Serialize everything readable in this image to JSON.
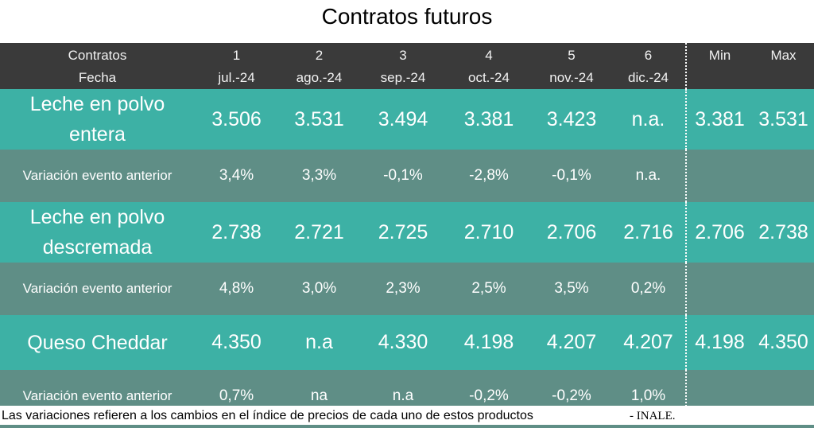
{
  "title": "Contratos futuros",
  "header": {
    "col1_top": "Contratos",
    "col1_bottom": "Fecha",
    "contracts": [
      {
        "number": "1",
        "date": "jul.-24"
      },
      {
        "number": "2",
        "date": "ago.-24"
      },
      {
        "number": "3",
        "date": "sep.-24"
      },
      {
        "number": "4",
        "date": "oct.-24"
      },
      {
        "number": "5",
        "date": "nov.-24"
      },
      {
        "number": "6",
        "date": "dic.-24"
      }
    ],
    "min_label": "Min",
    "max_label": "Max"
  },
  "rows": [
    {
      "product_line1": "Leche en polvo",
      "product_line2": "entera",
      "values": [
        "3.506",
        "3.531",
        "3.494",
        "3.381",
        "3.423",
        "n.a."
      ],
      "min": "3.381",
      "max": "3.531",
      "variation_label": "Variación evento anterior",
      "variations": [
        "3,4%",
        "3,3%",
        "-0,1%",
        "-2,8%",
        "-0,1%",
        "n.a."
      ]
    },
    {
      "product_line1": "Leche en polvo",
      "product_line2": "descremada",
      "values": [
        "2.738",
        "2.721",
        "2.725",
        "2.710",
        "2.706",
        "2.716"
      ],
      "min": "2.706",
      "max": "2.738",
      "variation_label": "Variación evento anterior",
      "variations": [
        "4,8%",
        "3,0%",
        "2,3%",
        "2,5%",
        "3,5%",
        "0,2%"
      ]
    },
    {
      "product_line1": "Queso Cheddar",
      "product_line2": "",
      "values": [
        "4.350",
        "n.a",
        "4.330",
        "4.198",
        "4.207",
        "4.207"
      ],
      "min": "4.198",
      "max": "4.350",
      "variation_label": "Variación evento anterior",
      "variations": [
        "0,7%",
        "na",
        "n.a",
        "-0,2%",
        "-0,2%",
        "1,0%"
      ]
    }
  ],
  "footer": {
    "note": "Las variaciones refieren a los cambios en el índice de precios de cada uno de estos productos",
    "source": "- INALE."
  },
  "colors": {
    "header_bg": "#3a3a3a",
    "product_row_bg": "#3db1a5",
    "variation_row_bg": "#5f8e86",
    "text": "#ffffff"
  }
}
